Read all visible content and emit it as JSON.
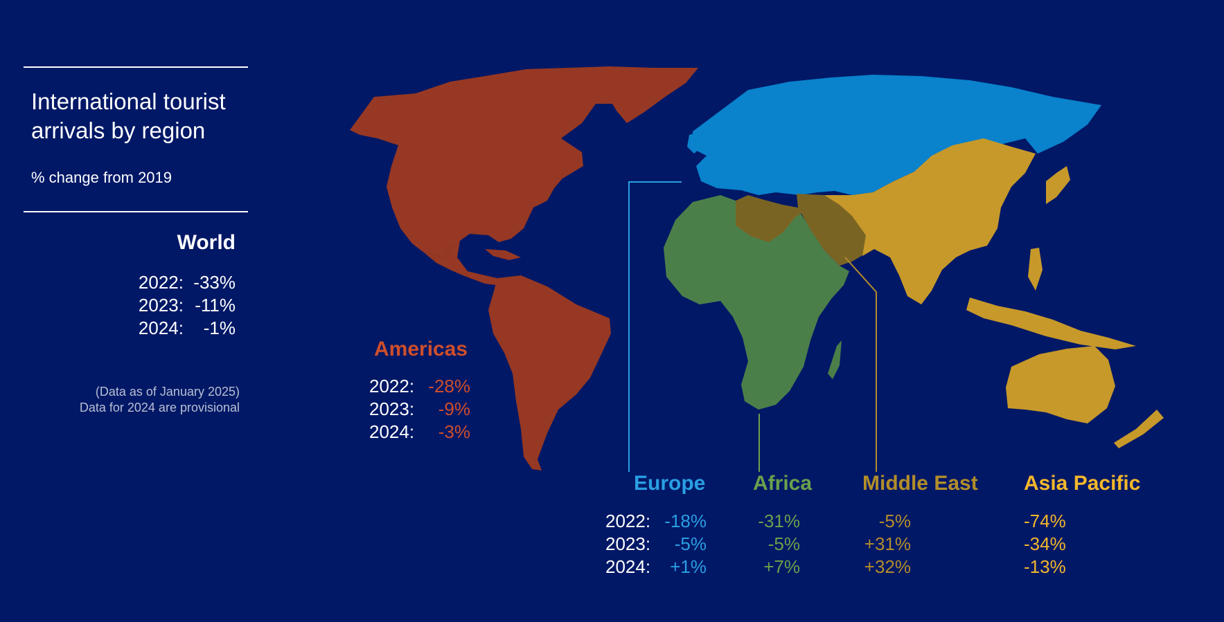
{
  "title": "International tourist arrivals by region",
  "subtitle": "% change from 2019",
  "world": {
    "label": "World",
    "rows": [
      {
        "year": "2022:",
        "value": "-33%"
      },
      {
        "year": "2023:",
        "value": "-11%"
      },
      {
        "year": "2024:",
        "value": "-1%"
      }
    ]
  },
  "notes": {
    "line1": "(Data as of January 2025)",
    "line2": "Data for 2024 are provisional"
  },
  "years": [
    "2022:",
    "2023:",
    "2024:"
  ],
  "regions": {
    "americas": {
      "name": "Americas",
      "color": "#cf4e2b",
      "fill": "#963823",
      "values": [
        "-28%",
        "-9%",
        "-3%"
      ]
    },
    "europe": {
      "name": "Europe",
      "color": "#2a9fe3",
      "fill": "#0a82cc",
      "values": [
        "-18%",
        "-5%",
        "+1%"
      ]
    },
    "africa": {
      "name": "Africa",
      "color": "#6aa14c",
      "fill": "#4b7f4a",
      "values": [
        "-31%",
        "-5%",
        "+7%"
      ]
    },
    "middle_east": {
      "name": "Middle East",
      "color": "#b38d2a",
      "fill": "#7a6424",
      "values": [
        "-5%",
        "+31%",
        "+32%"
      ]
    },
    "asia_pacific": {
      "name": "Asia Pacific",
      "color": "#f3b72c",
      "fill": "#c7992a",
      "values": [
        "-74%",
        "-34%",
        "-13%"
      ]
    }
  }
}
